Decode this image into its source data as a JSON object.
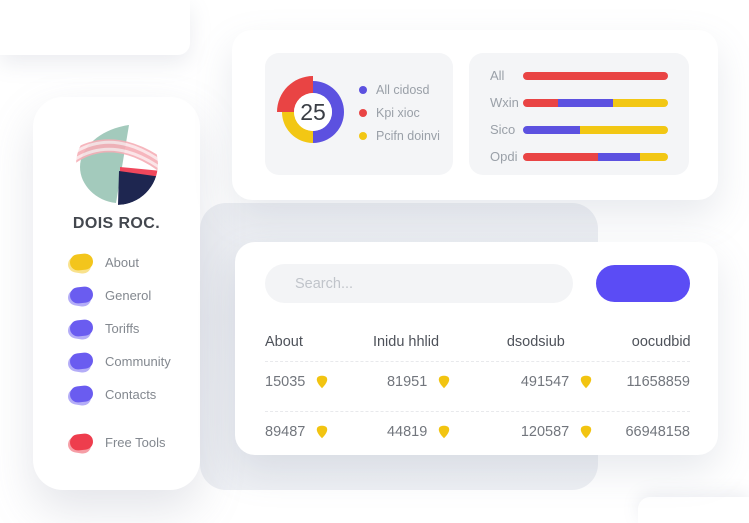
{
  "sidebar": {
    "title": "DOIS ROC.",
    "items": [
      {
        "label": "About",
        "color": "#f3c51c"
      },
      {
        "label": "Generol",
        "color": "#6a5cf0"
      },
      {
        "label": "Toriffs",
        "color": "#6a5cf0"
      },
      {
        "label": "Community",
        "color": "#6a5cf0"
      },
      {
        "label": "Contacts",
        "color": "#6a5cf0"
      },
      {
        "label": "Free Tools",
        "color": "#ee3d4d"
      }
    ]
  },
  "chart_data": [
    {
      "type": "pie",
      "subtype": "donut",
      "center_value": "25",
      "legend_position": "right",
      "slices": [
        {
          "label": "All cidosd",
          "color": "#5c51e0",
          "pct": 50
        },
        {
          "label": "Kpi xioc",
          "color": "#e94444",
          "pct": 25,
          "emphasized": true
        },
        {
          "label": "Pcifn doinvi",
          "color": "#f2c714",
          "pct": 25
        }
      ]
    },
    {
      "type": "bar",
      "orientation": "horizontal",
      "stacked": true,
      "unit": "percent",
      "rows": [
        {
          "label": "All",
          "segments": [
            {
              "color": "#e94444",
              "pct": 100
            }
          ]
        },
        {
          "label": "Wxin",
          "segments": [
            {
              "color": "#e94444",
              "pct": 24
            },
            {
              "color": "#5c51e0",
              "pct": 38
            },
            {
              "color": "#f2c714",
              "pct": 38
            }
          ]
        },
        {
          "label": "Sico",
          "segments": [
            {
              "color": "#5c51e0",
              "pct": 39
            },
            {
              "color": "#f2c714",
              "pct": 61
            }
          ]
        },
        {
          "label": "Opdi",
          "segments": [
            {
              "color": "#e94444",
              "pct": 52
            },
            {
              "color": "#5c51e0",
              "pct": 29
            },
            {
              "color": "#f2c714",
              "pct": 19
            }
          ]
        }
      ]
    }
  ],
  "table_card": {
    "search_placeholder": "Search...",
    "columns": [
      "About",
      "Inidu hhlid",
      "dsodsiub",
      "oocudbid"
    ],
    "rows": [
      {
        "cells": [
          {
            "value": "15035",
            "badge": "shield"
          },
          {
            "value": "81951",
            "badge": "shield"
          },
          {
            "value": "491547",
            "badge": "shield"
          },
          {
            "value": "11658859"
          }
        ]
      },
      {
        "cells": [
          {
            "value": "89487",
            "badge": "shield"
          },
          {
            "value": "44819",
            "badge": "shield"
          },
          {
            "value": "120587",
            "badge": "shield"
          },
          {
            "value": "66948158"
          }
        ]
      }
    ]
  },
  "colors": {
    "button": "#5b4cf5",
    "badge": "#f2c411",
    "panel_gray": "#f4f5f7",
    "chart_purple": "#5c51e0",
    "chart_red": "#e94444",
    "chart_yellow": "#f2c714"
  }
}
